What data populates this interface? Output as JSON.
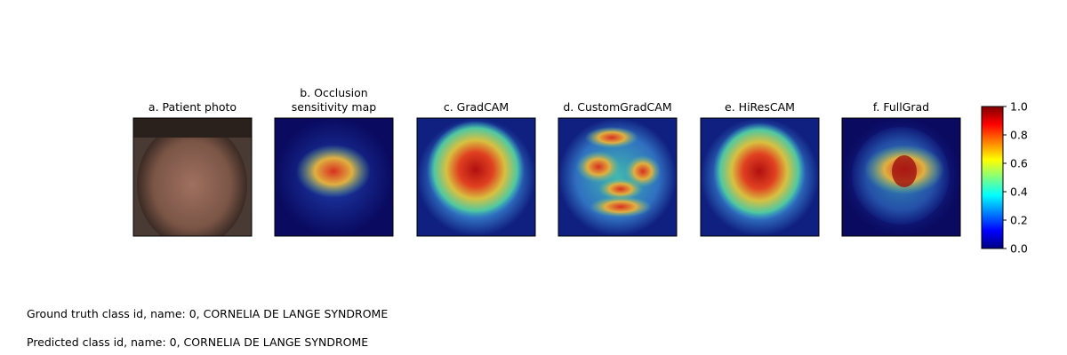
{
  "panels": [
    {
      "title_lines": [
        "a. Patient photo"
      ]
    },
    {
      "title_lines": [
        "b. Occlusion",
        "sensitivity map"
      ]
    },
    {
      "title_lines": [
        "c. GradCAM"
      ]
    },
    {
      "title_lines": [
        "d. CustomGradCAM"
      ]
    },
    {
      "title_lines": [
        "e. HiResCAM"
      ]
    },
    {
      "title_lines": [
        "f. FullGrad"
      ]
    }
  ],
  "colorbar": {
    "colormap": "jet",
    "lim": [
      0,
      1
    ],
    "ticks": [
      {
        "value": 0,
        "label": "0.0"
      },
      {
        "value": 0.2,
        "label": "0.2"
      },
      {
        "value": 0.4,
        "label": "0.4"
      },
      {
        "value": 0.6,
        "label": "0.6"
      },
      {
        "value": 0.8,
        "label": "0.8"
      },
      {
        "value": 1,
        "label": "1.0"
      }
    ]
  },
  "footer": [
    "Ground truth class id, name: 0, CORNELIA DE LANGE SYNDROME",
    "Predicted class id, name: 0, CORNELIA DE LANGE SYNDROME"
  ]
}
